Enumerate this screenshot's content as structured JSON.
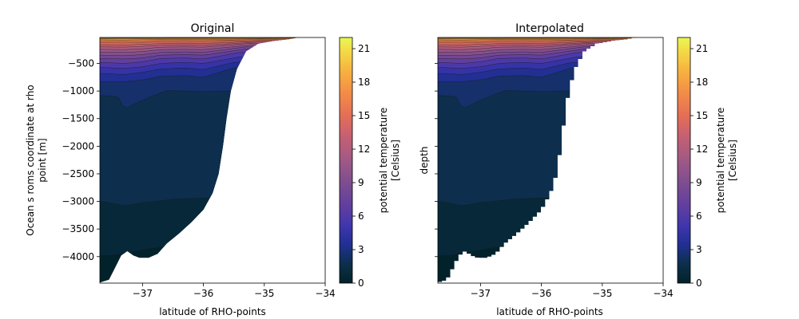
{
  "chart_data": [
    {
      "type": "filled-contour",
      "title": "Original",
      "xlabel": "latitude of RHO-points",
      "ylabel": "Ocean s roms coordinate at rho point [m]",
      "ylabel_lines": [
        "Ocean s roms coordinate at rho",
        "point [m]"
      ],
      "xlim": [
        -37.7,
        -34.0
      ],
      "ylim": [
        -4480,
        -30
      ],
      "xticks": [
        -37,
        -36,
        -35,
        -34
      ],
      "xtick_labels": [
        "−37",
        "−36",
        "−35",
        "−34"
      ],
      "yticks": [
        -500,
        -1000,
        -1500,
        -2000,
        -2500,
        -3000,
        -3500,
        -4000
      ],
      "ytick_labels": [
        "−500",
        "−1000",
        "−1500",
        "−2000",
        "−2500",
        "−3000",
        "−3500",
        "−4000"
      ],
      "seafloor": [
        [
          -37.7,
          -4470
        ],
        [
          -37.55,
          -4420
        ],
        [
          -37.45,
          -4200
        ],
        [
          -37.35,
          -3980
        ],
        [
          -37.25,
          -3900
        ],
        [
          -37.15,
          -3980
        ],
        [
          -37.05,
          -4020
        ],
        [
          -36.9,
          -4020
        ],
        [
          -36.75,
          -3950
        ],
        [
          -36.6,
          -3760
        ],
        [
          -36.4,
          -3580
        ],
        [
          -36.2,
          -3380
        ],
        [
          -36.0,
          -3150
        ],
        [
          -35.85,
          -2850
        ],
        [
          -35.75,
          -2500
        ],
        [
          -35.68,
          -2000
        ],
        [
          -35.62,
          -1500
        ],
        [
          -35.55,
          -1000
        ],
        [
          -35.45,
          -600
        ],
        [
          -35.3,
          -280
        ],
        [
          -35.1,
          -140
        ],
        [
          -34.85,
          -90
        ],
        [
          -34.6,
          -60
        ],
        [
          -34.45,
          -30
        ]
      ],
      "stepped": false
    },
    {
      "type": "filled-contour",
      "title": "Interpolated",
      "xlabel": "latitude of RHO-points",
      "ylabel": "depth",
      "ylabel_lines": [
        "depth"
      ],
      "xlim": [
        -37.7,
        -34.0
      ],
      "ylim": [
        -4480,
        -30
      ],
      "xticks": [
        -37,
        -36,
        -35,
        -34
      ],
      "xtick_labels": [
        "−37",
        "−36",
        "−35",
        "−34"
      ],
      "yticks": [
        -500,
        -1000,
        -1500,
        -2000,
        -2500,
        -3000,
        -3500,
        -4000
      ],
      "ytick_labels": [],
      "seafloor": [
        [
          -37.7,
          -4470
        ],
        [
          -37.55,
          -4420
        ],
        [
          -37.45,
          -4200
        ],
        [
          -37.35,
          -3980
        ],
        [
          -37.25,
          -3900
        ],
        [
          -37.15,
          -3980
        ],
        [
          -37.05,
          -4020
        ],
        [
          -36.9,
          -4020
        ],
        [
          -36.75,
          -3950
        ],
        [
          -36.6,
          -3760
        ],
        [
          -36.4,
          -3580
        ],
        [
          -36.2,
          -3380
        ],
        [
          -36.0,
          -3150
        ],
        [
          -35.85,
          -2850
        ],
        [
          -35.75,
          -2500
        ],
        [
          -35.68,
          -2000
        ],
        [
          -35.62,
          -1500
        ],
        [
          -35.55,
          -1000
        ],
        [
          -35.45,
          -600
        ],
        [
          -35.3,
          -280
        ],
        [
          -35.1,
          -140
        ],
        [
          -34.85,
          -90
        ],
        [
          -34.6,
          -60
        ],
        [
          -34.45,
          -30
        ]
      ],
      "stepped": true
    }
  ],
  "colorbar": {
    "label_lines": [
      "potential temperature",
      "[Celsius]"
    ],
    "range": [
      0,
      22
    ],
    "ticks": [
      0,
      3,
      6,
      9,
      12,
      15,
      18,
      21
    ],
    "tick_labels": [
      "0",
      "3",
      "6",
      "9",
      "12",
      "15",
      "18",
      "21"
    ],
    "colormap_stops": [
      [
        0,
        "#02222b"
      ],
      [
        1.5,
        "#0b2e45"
      ],
      [
        2.5,
        "#15306a"
      ],
      [
        3.5,
        "#222f93"
      ],
      [
        5,
        "#3d35ad"
      ],
      [
        7,
        "#623f9e"
      ],
      [
        9,
        "#7e4d8f"
      ],
      [
        11,
        "#9f5985"
      ],
      [
        13,
        "#c25f73"
      ],
      [
        15,
        "#e46f56"
      ],
      [
        17,
        "#f28c47"
      ],
      [
        19,
        "#f7b240"
      ],
      [
        21,
        "#f2df48"
      ],
      [
        22,
        "#e8f955"
      ]
    ]
  },
  "temperature_layers": [
    {
      "value": 0.8,
      "depth_profile": [
        [
          -37.7,
          -3980
        ],
        [
          -37.5,
          -3980
        ],
        [
          -37.2,
          -3920
        ],
        [
          -37.0,
          -3880
        ],
        [
          -36.8,
          -3840
        ],
        [
          -36.5,
          -3800
        ],
        [
          -36.2,
          -3760
        ],
        [
          -35.9,
          -3700
        ]
      ]
    },
    {
      "value": 1.7,
      "depth_profile": [
        [
          -37.7,
          -3000
        ],
        [
          -37.5,
          -3030
        ],
        [
          -37.3,
          -3080
        ],
        [
          -37.0,
          -3020
        ],
        [
          -36.8,
          -3000
        ],
        [
          -36.5,
          -2960
        ],
        [
          -36.3,
          -2950
        ],
        [
          -36.0,
          -2940
        ],
        [
          -35.8,
          -2930
        ]
      ]
    },
    {
      "value": 2.5,
      "depth_profile": [
        [
          -37.7,
          -1080
        ],
        [
          -37.4,
          -1100
        ],
        [
          -37.3,
          -1320
        ],
        [
          -37.1,
          -1220
        ],
        [
          -36.9,
          -1120
        ],
        [
          -36.6,
          -990
        ],
        [
          -36.3,
          -1000
        ],
        [
          -36.0,
          -1010
        ],
        [
          -35.6,
          -1000
        ]
      ]
    },
    {
      "value": 3.5,
      "depth_profile": [
        [
          -37.7,
          -830
        ],
        [
          -37.3,
          -830
        ],
        [
          -37.0,
          -800
        ],
        [
          -36.7,
          -730
        ],
        [
          -36.3,
          -720
        ],
        [
          -36.0,
          -750
        ],
        [
          -35.5,
          -580
        ]
      ]
    },
    {
      "value": 4.6,
      "depth_profile": [
        [
          -37.7,
          -680
        ],
        [
          -37.3,
          -700
        ],
        [
          -37.0,
          -660
        ],
        [
          -36.7,
          -600
        ],
        [
          -36.3,
          -580
        ],
        [
          -36.0,
          -610
        ],
        [
          -35.5,
          -480
        ]
      ]
    },
    {
      "value": 5.8,
      "depth_profile": [
        [
          -37.7,
          -570
        ],
        [
          -37.3,
          -590
        ],
        [
          -37.0,
          -560
        ],
        [
          -36.7,
          -500
        ],
        [
          -36.3,
          -480
        ],
        [
          -36.0,
          -500
        ],
        [
          -35.4,
          -380
        ]
      ]
    },
    {
      "value": 7.0,
      "depth_profile": [
        [
          -37.7,
          -480
        ],
        [
          -37.3,
          -500
        ],
        [
          -37.0,
          -470
        ],
        [
          -36.7,
          -410
        ],
        [
          -36.3,
          -400
        ],
        [
          -36.0,
          -420
        ],
        [
          -35.4,
          -300
        ]
      ]
    },
    {
      "value": 8.2,
      "depth_profile": [
        [
          -37.7,
          -410
        ],
        [
          -37.3,
          -420
        ],
        [
          -37.0,
          -400
        ],
        [
          -36.7,
          -350
        ],
        [
          -36.3,
          -340
        ],
        [
          -36.0,
          -350
        ],
        [
          -35.3,
          -240
        ]
      ]
    },
    {
      "value": 9.4,
      "depth_profile": [
        [
          -37.7,
          -350
        ],
        [
          -37.3,
          -360
        ],
        [
          -37.0,
          -340
        ],
        [
          -36.7,
          -300
        ],
        [
          -36.3,
          -290
        ],
        [
          -36.0,
          -300
        ],
        [
          -35.3,
          -200
        ]
      ]
    },
    {
      "value": 10.6,
      "depth_profile": [
        [
          -37.7,
          -295
        ],
        [
          -37.3,
          -300
        ],
        [
          -37.0,
          -285
        ],
        [
          -36.7,
          -250
        ],
        [
          -36.3,
          -245
        ],
        [
          -36.0,
          -250
        ],
        [
          -35.2,
          -165
        ]
      ]
    },
    {
      "value": 11.8,
      "depth_profile": [
        [
          -37.7,
          -245
        ],
        [
          -37.3,
          -250
        ],
        [
          -37.0,
          -235
        ],
        [
          -36.7,
          -205
        ],
        [
          -36.3,
          -200
        ],
        [
          -36.0,
          -205
        ],
        [
          -35.2,
          -135
        ]
      ]
    },
    {
      "value": 13.0,
      "depth_profile": [
        [
          -37.7,
          -200
        ],
        [
          -37.3,
          -205
        ],
        [
          -37.0,
          -190
        ],
        [
          -36.7,
          -170
        ],
        [
          -36.3,
          -165
        ],
        [
          -36.0,
          -170
        ],
        [
          -35.1,
          -115
        ]
      ]
    },
    {
      "value": 14.2,
      "depth_profile": [
        [
          -37.7,
          -160
        ],
        [
          -37.3,
          -165
        ],
        [
          -37.0,
          -155
        ],
        [
          -36.7,
          -140
        ],
        [
          -36.3,
          -135
        ],
        [
          -36.0,
          -140
        ],
        [
          -35.0,
          -95
        ]
      ]
    },
    {
      "value": 15.4,
      "depth_profile": [
        [
          -37.7,
          -125
        ],
        [
          -37.3,
          -130
        ],
        [
          -37.0,
          -120
        ],
        [
          -36.7,
          -110
        ],
        [
          -36.3,
          -108
        ],
        [
          -36.0,
          -110
        ],
        [
          -34.9,
          -80
        ]
      ]
    },
    {
      "value": 16.6,
      "depth_profile": [
        [
          -37.7,
          -95
        ],
        [
          -37.3,
          -100
        ],
        [
          -37.0,
          -92
        ],
        [
          -36.7,
          -85
        ],
        [
          -36.3,
          -84
        ],
        [
          -36.0,
          -85
        ],
        [
          -34.8,
          -65
        ]
      ]
    },
    {
      "value": 17.8,
      "depth_profile": [
        [
          -37.7,
          -72
        ],
        [
          -37.3,
          -75
        ],
        [
          -37.0,
          -70
        ],
        [
          -36.7,
          -66
        ],
        [
          -36.3,
          -65
        ],
        [
          -36.0,
          -66
        ],
        [
          -34.7,
          -52
        ]
      ]
    },
    {
      "value": 19.0,
      "depth_profile": [
        [
          -37.7,
          -56
        ],
        [
          -37.0,
          -55
        ],
        [
          -36.0,
          -52
        ],
        [
          -34.6,
          -42
        ]
      ]
    },
    {
      "value": 20.2,
      "depth_profile": [
        [
          -37.7,
          -44
        ],
        [
          -37.0,
          -43
        ],
        [
          -36.0,
          -41
        ],
        [
          -34.5,
          -35
        ]
      ]
    },
    {
      "value": 21.2,
      "depth_profile": [
        [
          -37.7,
          -36
        ],
        [
          -36.0,
          -35
        ],
        [
          -34.5,
          -31
        ]
      ]
    }
  ]
}
